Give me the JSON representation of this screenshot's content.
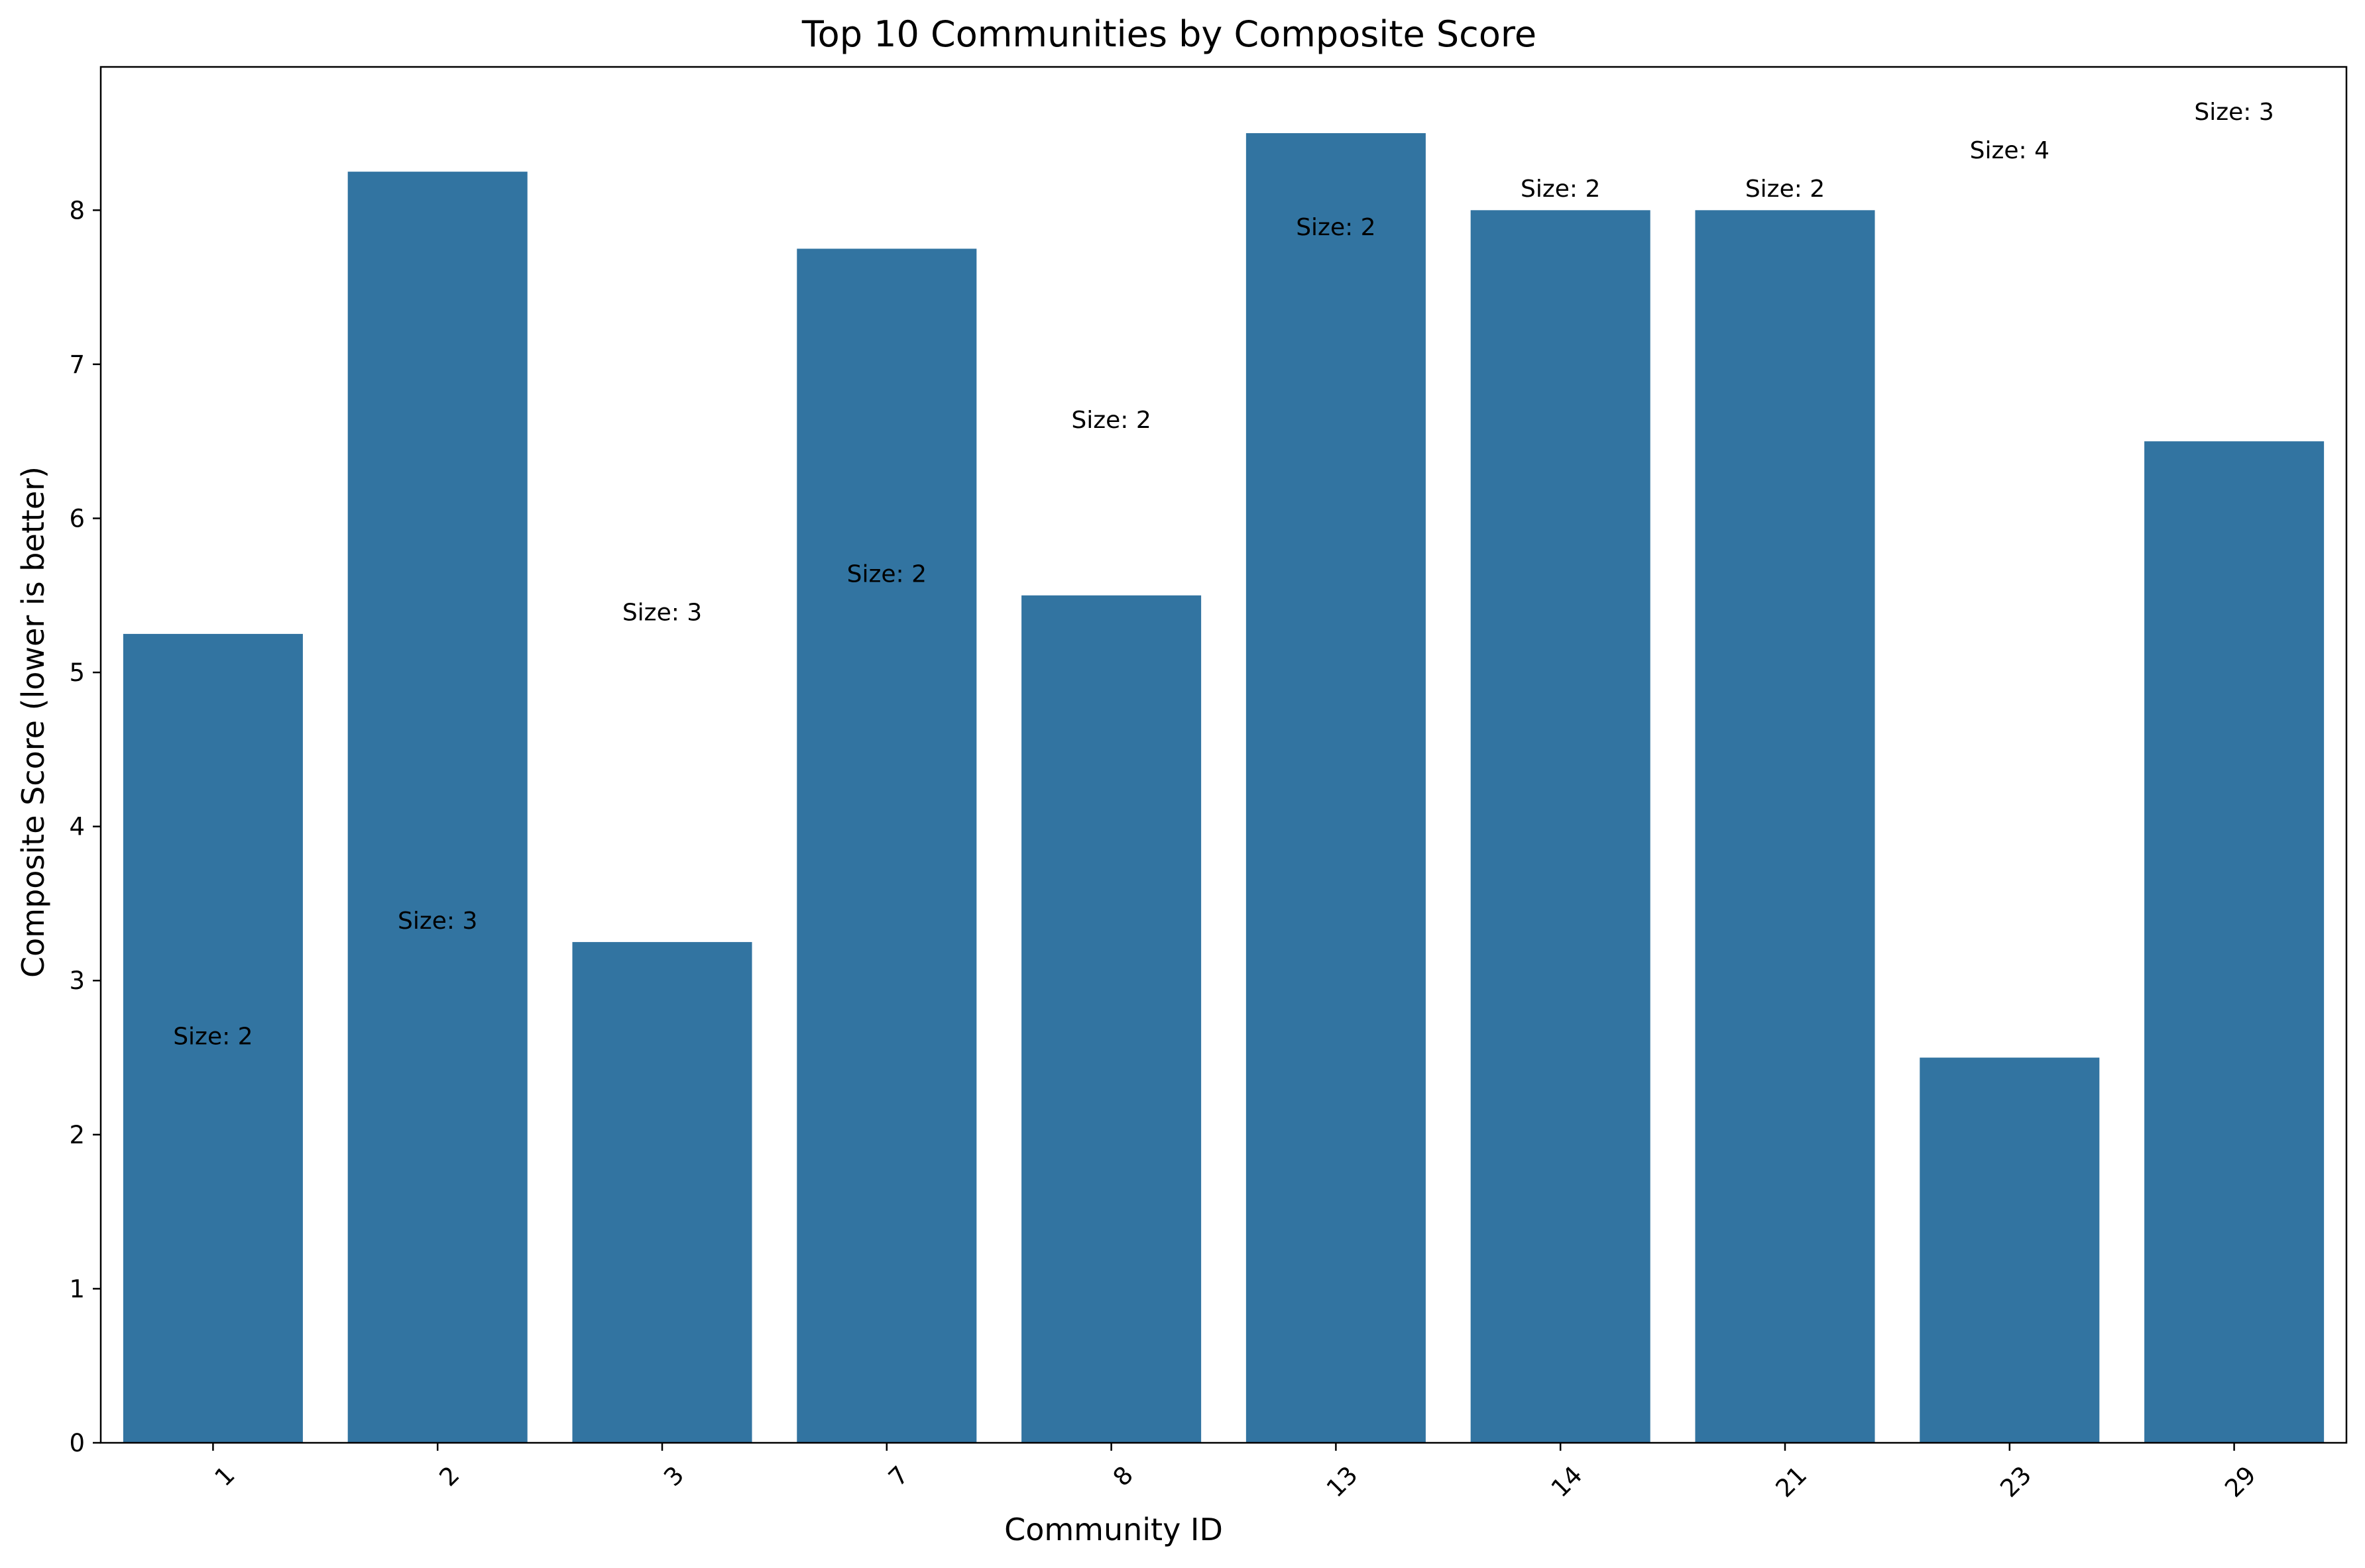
{
  "chart_data": {
    "type": "bar",
    "title": "Top 10 Communities by Composite Score",
    "xlabel": "Community ID",
    "ylabel": "Composite Score (lower is better)",
    "categories": [
      "1",
      "2",
      "3",
      "7",
      "8",
      "13",
      "14",
      "21",
      "23",
      "29"
    ],
    "values": [
      5.25,
      8.25,
      3.25,
      7.75,
      5.5,
      8.5,
      8.0,
      8.0,
      2.5,
      6.5
    ],
    "yticks": [
      0,
      1,
      2,
      3,
      4,
      5,
      6,
      7,
      8
    ],
    "ylim": [
      0,
      8.93
    ],
    "grid": false,
    "legend": "none",
    "bar_color": "#3274a1",
    "annotations": [
      {
        "category": "1",
        "text": "Size: 2",
        "y": 2.63
      },
      {
        "category": "2",
        "text": "Size: 3",
        "y": 3.38
      },
      {
        "category": "3",
        "text": "Size: 3",
        "y": 5.38
      },
      {
        "category": "7",
        "text": "Size: 2",
        "y": 5.63
      },
      {
        "category": "8",
        "text": "Size: 2",
        "y": 6.63
      },
      {
        "category": "13",
        "text": "Size: 2",
        "y": 7.88
      },
      {
        "category": "14",
        "text": "Size: 2",
        "y": 8.13
      },
      {
        "category": "21",
        "text": "Size: 2",
        "y": 8.13
      },
      {
        "category": "23",
        "text": "Size: 4",
        "y": 8.38
      },
      {
        "category": "29",
        "text": "Size: 3",
        "y": 8.63
      }
    ]
  }
}
